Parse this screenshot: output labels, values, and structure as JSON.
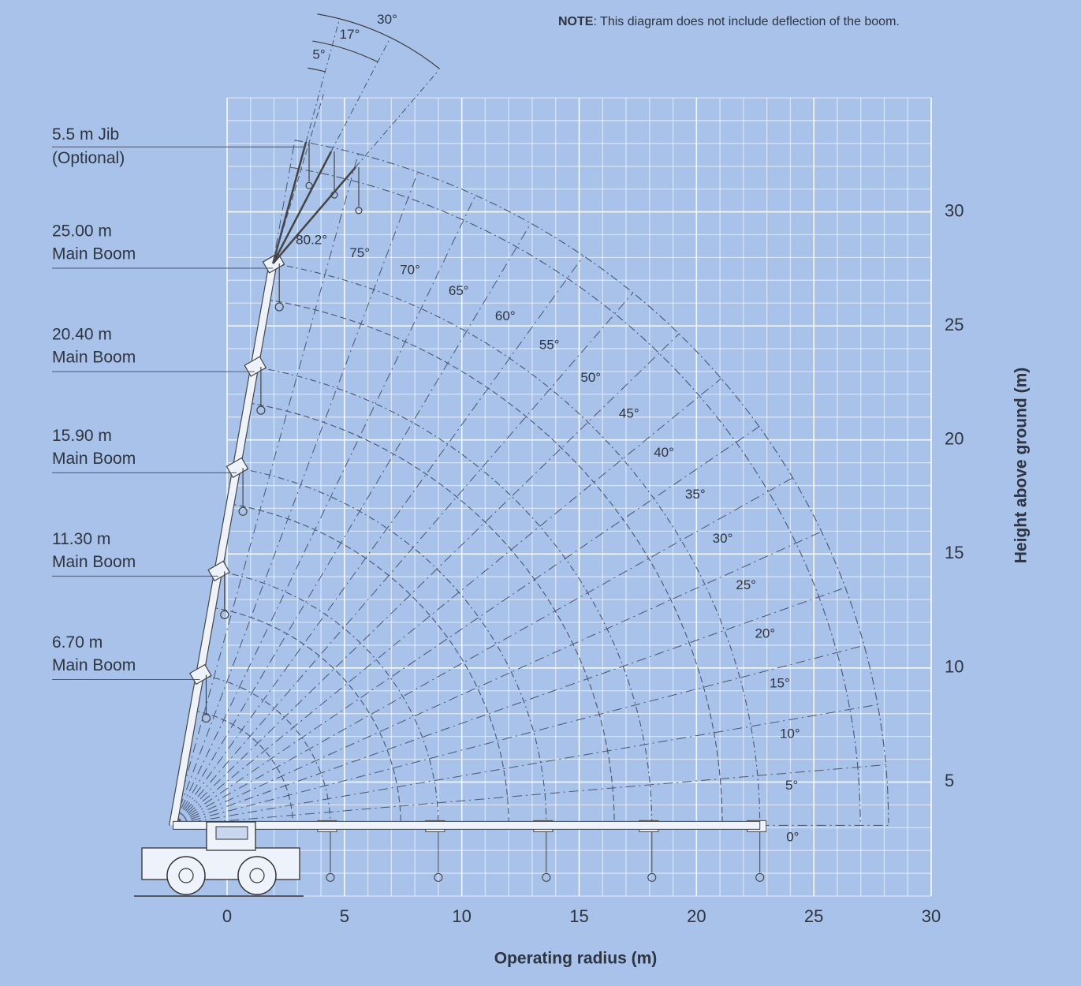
{
  "note": {
    "label": "NOTE",
    "text": ": This diagram does not include deflection of the boom."
  },
  "x_axis": {
    "title": "Operating radius (m)",
    "lim": [
      0,
      30
    ],
    "ticks": [
      0,
      5,
      10,
      15,
      20,
      25,
      30
    ]
  },
  "y_axis": {
    "title": "Height above ground (m)",
    "lim": [
      0,
      35
    ],
    "ticks": [
      5,
      10,
      15,
      20,
      25,
      30
    ]
  },
  "jib": {
    "length": {
      "value": 5.5,
      "label": "5.5 m Jib"
    },
    "note": "(Optional)",
    "offsets": [
      {
        "value": 5,
        "label": "5°"
      },
      {
        "value": 17,
        "label": "17°"
      },
      {
        "value": 30,
        "label": "30°"
      }
    ]
  },
  "booms": [
    {
      "length": {
        "value": 25.0,
        "label": "25.00 m"
      },
      "name": "Main Boom"
    },
    {
      "length": {
        "value": 20.4,
        "label": "20.40 m"
      },
      "name": "Main Boom"
    },
    {
      "length": {
        "value": 15.9,
        "label": "15.90 m"
      },
      "name": "Main Boom"
    },
    {
      "length": {
        "value": 11.3,
        "label": "11.30 m"
      },
      "name": "Main Boom"
    },
    {
      "length": {
        "value": 6.7,
        "label": "6.70 m"
      },
      "name": "Main Boom"
    }
  ],
  "angles": [
    {
      "value": 80.2,
      "label": "80.2°"
    },
    {
      "value": 75,
      "label": "75°"
    },
    {
      "value": 70,
      "label": "70°"
    },
    {
      "value": 65,
      "label": "65°"
    },
    {
      "value": 60,
      "label": "60°"
    },
    {
      "value": 55,
      "label": "55°"
    },
    {
      "value": 50,
      "label": "50°"
    },
    {
      "value": 45,
      "label": "45°"
    },
    {
      "value": 40,
      "label": "40°"
    },
    {
      "value": 35,
      "label": "35°"
    },
    {
      "value": 30,
      "label": "30°"
    },
    {
      "value": 25,
      "label": "25°"
    },
    {
      "value": 20,
      "label": "20°"
    },
    {
      "value": 15,
      "label": "15°"
    },
    {
      "value": 10,
      "label": "10°"
    },
    {
      "value": 5,
      "label": "5°"
    },
    {
      "value": 0,
      "label": "0°"
    }
  ]
}
